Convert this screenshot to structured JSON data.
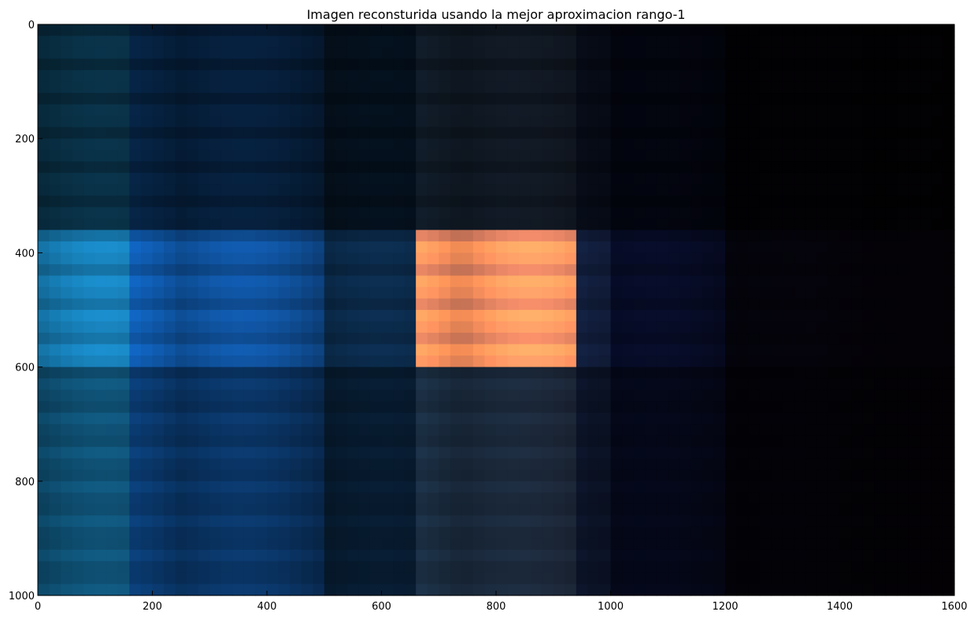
{
  "chart_data": {
    "type": "heatmap",
    "title": "Imagen reconsturida usando la mejor aproximacion rango-1",
    "xlabel": "",
    "ylabel": "",
    "xlim": [
      0,
      1600
    ],
    "ylim": [
      1000,
      0
    ],
    "x_ticks": [
      0,
      200,
      400,
      600,
      800,
      1000,
      1200,
      1400,
      1600
    ],
    "y_ticks": [
      0,
      200,
      400,
      600,
      800,
      1000
    ],
    "x_tick_labels": [
      "0",
      "200",
      "400",
      "600",
      "800",
      "1000",
      "1200",
      "1400",
      "1600"
    ],
    "y_tick_labels": [
      "0",
      "200",
      "400",
      "600",
      "800",
      "1000"
    ],
    "grid": false,
    "image": {
      "description_colors": {
        "frame": "#000000",
        "dark_background": "#05050f"
      },
      "x_bands": [
        {
          "x0": 0,
          "x1": 160,
          "tone": [
            0.55,
            1.0,
            1.0
          ]
        },
        {
          "x0": 160,
          "x1": 500,
          "tone": [
            0.35,
            0.75,
            1.0
          ]
        },
        {
          "x0": 500,
          "x1": 660,
          "tone": [
            0.25,
            0.45,
            0.55
          ]
        },
        {
          "x0": 660,
          "x1": 930,
          "tone": [
            1.0,
            0.85,
            0.85
          ]
        },
        {
          "x0": 930,
          "x1": 1000,
          "tone": [
            0.45,
            0.5,
            0.7
          ]
        },
        {
          "x0": 1000,
          "x1": 1200,
          "tone": [
            0.15,
            0.2,
            0.45
          ]
        },
        {
          "x0": 1200,
          "x1": 1600,
          "tone": [
            0.1,
            0.08,
            0.18
          ]
        }
      ],
      "y_bands": [
        {
          "y0": 0,
          "y1": 350,
          "level": 0.35
        },
        {
          "y0": 350,
          "y1": 600,
          "level": 0.95
        },
        {
          "y0": 600,
          "y1": 1000,
          "level": 0.6
        }
      ]
    }
  }
}
